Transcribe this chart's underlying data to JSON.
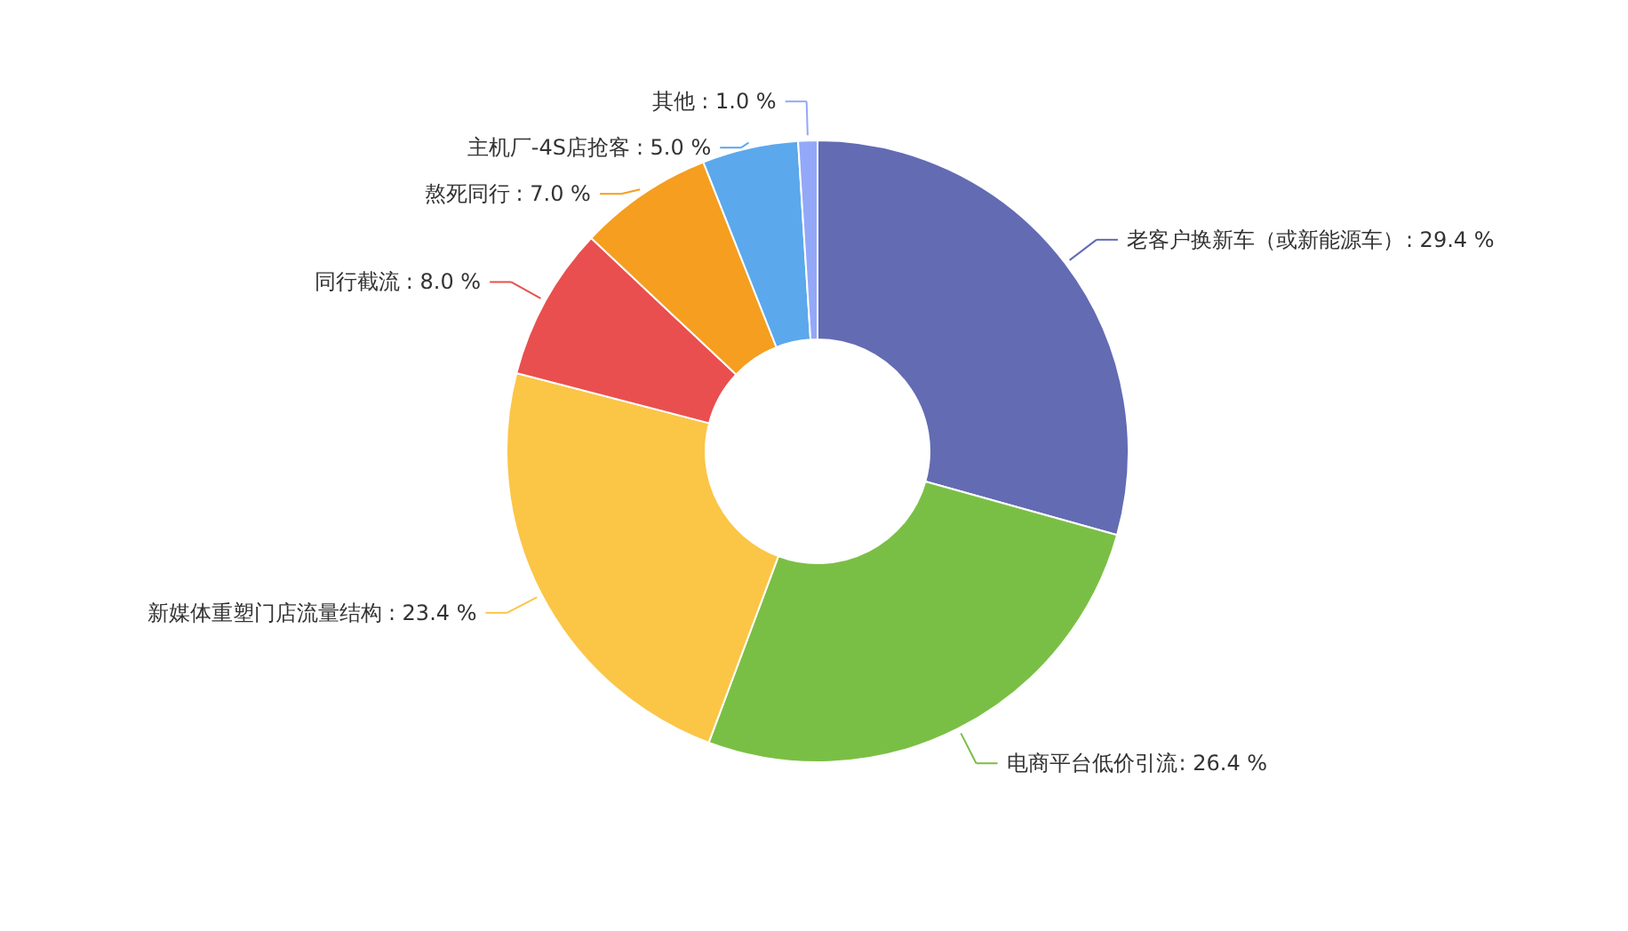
{
  "chart_data": {
    "type": "donut",
    "categories": [
      "老客户换新车（或新能源车）",
      "电商平台低价引流",
      "新媒体重塑门店流量结构",
      "同行截流",
      "熬死同行",
      "主机厂-4S店抢客",
      "其他"
    ],
    "values": [
      29.4,
      26.4,
      23.4,
      8.0,
      7.0,
      5.0,
      1.0
    ],
    "value_labels": [
      ": 29.4 %",
      ": 26.4 %",
      ": 23.4 %",
      ": 8.0 %",
      ": 7.0 %",
      ": 5.0 %",
      ": 1.0 %"
    ],
    "colors": [
      "#636bb3",
      "#7abf45",
      "#fbc546",
      "#e94f4e",
      "#f59e20",
      "#5ba8ec",
      "#93a8f8"
    ]
  }
}
